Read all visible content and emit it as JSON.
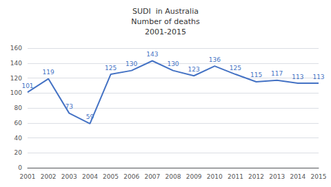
{
  "chart_data": {
    "type": "line",
    "title": "SUDI  in Australia\nNumber of deaths\n2001-2015",
    "categories": [
      "2001",
      "2002",
      "2003",
      "2004",
      "2005",
      "2006",
      "2007",
      "2008",
      "2009",
      "2010",
      "2011",
      "2012",
      "2013",
      "2014",
      "2015"
    ],
    "values": [
      101,
      119,
      73,
      59,
      125,
      130,
      143,
      130,
      123,
      136,
      125,
      115,
      117,
      113,
      113
    ],
    "color": "#4472C4",
    "ylim": [
      0,
      160
    ],
    "yticks": [
      0,
      20,
      40,
      60,
      80,
      100,
      120,
      140,
      160
    ],
    "grid": true,
    "data_labels": true
  }
}
